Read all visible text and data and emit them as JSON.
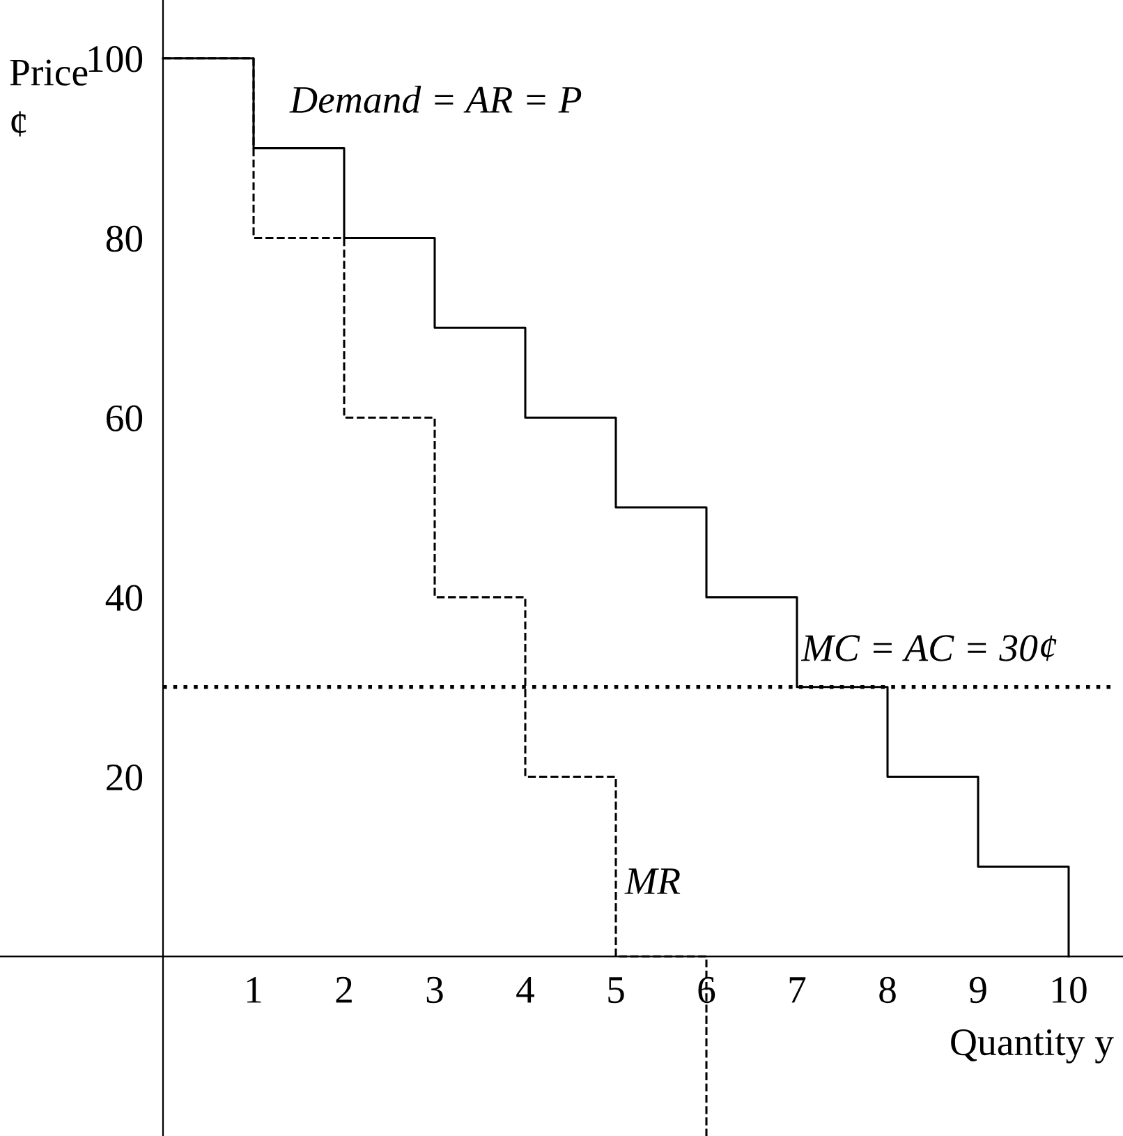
{
  "chart_data": {
    "type": "step",
    "xlabel": "Quantity y",
    "ylabel": "Price\n¢",
    "x": [
      0,
      1,
      2,
      3,
      4,
      5,
      6,
      7,
      8,
      9,
      10
    ],
    "series": [
      {
        "color": "#000000",
        "line_style": "solid",
        "values": [
          100,
          90,
          80,
          70,
          60,
          50,
          40,
          30,
          20,
          10,
          0
        ]
      },
      {
        "color": "#000000",
        "line_style": "dashed",
        "x": [
          0,
          1,
          2,
          3,
          4,
          5,
          6
        ],
        "values": [
          100,
          80,
          60,
          40,
          20,
          0,
          -20
        ]
      }
    ],
    "xlim": [
      -1.8,
      10.6
    ],
    "ylim": [
      -20,
      106.5
    ],
    "xticks": [
      1,
      2,
      3,
      4,
      5,
      6,
      7,
      8,
      9,
      10
    ],
    "yticks": [
      20,
      40,
      60,
      80,
      100
    ],
    "ref_lines": [
      {
        "axis": "y",
        "value": 30,
        "label": "MC = AC = 30¢",
        "line_style": "dotted",
        "color": "#000000"
      }
    ],
    "annotations": [
      "Demand = AR = P",
      "MR"
    ],
    "grid": false,
    "legend": false
  }
}
